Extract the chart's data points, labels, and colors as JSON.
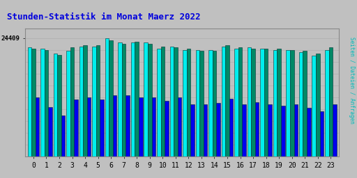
{
  "title": "Stunden-Statistik im Monat Maerz 2022",
  "title_color": "#0000dd",
  "title_fontsize": 9,
  "background_color": "#c0c0c0",
  "plot_bg_color": "#c0c0c0",
  "ylabel_text": "Seiten / Dateien / Anfragen",
  "ylabel_color": "#00bbbb",
  "hours": [
    0,
    1,
    2,
    3,
    4,
    5,
    6,
    7,
    8,
    9,
    10,
    11,
    12,
    13,
    14,
    15,
    16,
    17,
    18,
    19,
    20,
    21,
    22,
    23
  ],
  "seiten": [
    92,
    91,
    87,
    89,
    93,
    93,
    100,
    96,
    96,
    96,
    91,
    93,
    90,
    90,
    90,
    93,
    91,
    92,
    91,
    90,
    90,
    88,
    85,
    90
  ],
  "dateien": [
    91,
    90,
    86,
    92,
    94,
    94,
    98,
    95,
    97,
    95,
    93,
    92,
    91,
    89,
    89,
    94,
    92,
    91,
    91,
    91,
    90,
    89,
    87,
    92
  ],
  "anfragen": [
    50,
    42,
    35,
    48,
    50,
    48,
    52,
    52,
    50,
    50,
    47,
    50,
    44,
    44,
    45,
    49,
    44,
    46,
    44,
    43,
    44,
    41,
    38,
    44
  ],
  "color_seiten": "#00eeee",
  "color_dateien": "#008866",
  "color_anfragen": "#0000ee",
  "bar_edge_color": "#003333",
  "ylim_max": 108,
  "max_value": "24409"
}
